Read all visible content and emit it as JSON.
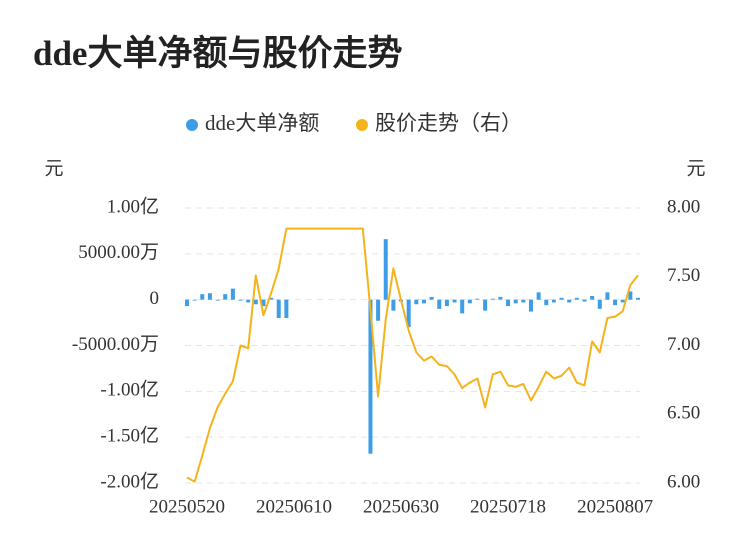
{
  "chart_data": {
    "type": "bar_line",
    "title": "dde大单净额与股价走势",
    "y_label": "元",
    "y2_label": "元",
    "legend_position": "top",
    "grid": true,
    "categories": [
      "20250520",
      null,
      null,
      null,
      null,
      null,
      null,
      null,
      null,
      null,
      null,
      null,
      null,
      null,
      "20250610",
      null,
      null,
      null,
      null,
      null,
      null,
      null,
      null,
      null,
      null,
      null,
      null,
      null,
      "20250630",
      null,
      null,
      null,
      null,
      null,
      null,
      null,
      null,
      null,
      null,
      null,
      null,
      null,
      "20250718",
      null,
      null,
      null,
      null,
      null,
      null,
      null,
      null,
      null,
      null,
      null,
      null,
      null,
      "20250807",
      null,
      null,
      null
    ],
    "ylim": [
      -200000000,
      100000000
    ],
    "yticks": [
      {
        "value": 100000000,
        "label": "1.00亿"
      },
      {
        "value": 50000000,
        "label": "5000.00万"
      },
      0,
      {
        "value": -50000000,
        "label": "-5000.00万"
      },
      {
        "value": -100000000,
        "label": "-1.00亿"
      },
      {
        "value": -150000000,
        "label": "-1.50亿"
      },
      {
        "value": -200000000,
        "label": "-2.00亿"
      }
    ],
    "y2lim": [
      6,
      8
    ],
    "y2ticks": [
      {
        "value": 8,
        "label": "8.00"
      },
      {
        "value": 7.5,
        "label": "7.50"
      },
      {
        "value": 7,
        "label": "7.00"
      },
      {
        "value": 6.5,
        "label": "6.50"
      },
      {
        "value": 6,
        "label": "6.00"
      }
    ],
    "series": [
      {
        "name": "dde大单净额",
        "type": "bar",
        "color": "#3d9de6",
        "values": [
          -7000000,
          -1000000,
          6000000,
          7000000,
          -1000000,
          6000000,
          12000000,
          -1000000,
          -3000000,
          -5000000,
          -7000000,
          2000000,
          -20000000,
          -20000000,
          null,
          null,
          null,
          null,
          null,
          null,
          null,
          null,
          null,
          null,
          -168000000,
          -23000000,
          66000000,
          -12000000,
          -2000000,
          -30000000,
          -5000000,
          -4000000,
          3000000,
          -10000000,
          -7000000,
          -3000000,
          -15000000,
          -4000000,
          1000000,
          -12000000,
          1000000,
          3000000,
          -7000000,
          -4000000,
          -3000000,
          -13000000,
          8000000,
          -6000000,
          -3000000,
          2000000,
          -3000000,
          2000000,
          -2000000,
          4000000,
          -10000000,
          8000000,
          -6000000,
          -3000000,
          9000000,
          2000000
        ]
      },
      {
        "name": "股价走势（右）",
        "type": "line",
        "axis": "y2",
        "color": "#f5b31b",
        "values": [
          6.04,
          6.01,
          6.2,
          6.4,
          6.55,
          6.65,
          6.74,
          7.0,
          6.98,
          7.51,
          7.22,
          7.38,
          7.56,
          7.85,
          7.85,
          7.85,
          7.85,
          7.85,
          7.85,
          7.85,
          7.85,
          7.85,
          7.85,
          7.85,
          7.26,
          6.63,
          7.19,
          7.56,
          7.33,
          7.11,
          6.95,
          6.89,
          6.92,
          6.86,
          6.85,
          6.79,
          6.69,
          6.73,
          6.76,
          6.55,
          6.79,
          6.81,
          6.71,
          6.7,
          6.72,
          6.6,
          6.7,
          6.81,
          6.76,
          6.78,
          6.84,
          6.73,
          6.71,
          7.03,
          6.95,
          7.2,
          7.21,
          7.25,
          7.44,
          7.51
        ]
      }
    ]
  }
}
